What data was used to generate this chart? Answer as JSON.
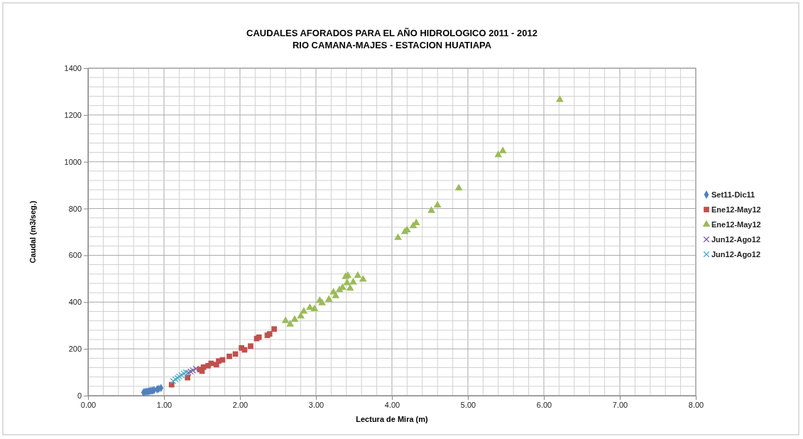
{
  "chart_data": {
    "type": "scatter",
    "title": "CAUDALES AFORADOS PARA EL AÑO HIDROLOGICO 2011 - 2012",
    "subtitle": "RIO CAMANA-MAJES - ESTACION HUATIAPA",
    "xlabel": "Lectura de Mira (m)",
    "ylabel": "Caudal (m3/seg.)",
    "xlim": [
      0,
      8
    ],
    "ylim": [
      0,
      1400
    ],
    "xticks": [
      {
        "value": 0,
        "label": "0.00"
      },
      {
        "value": 0.2,
        "label": null
      },
      {
        "value": 0.4,
        "label": null
      },
      {
        "value": 0.6,
        "label": null
      },
      {
        "value": 0.8,
        "label": null
      },
      {
        "value": 1,
        "label": "1.00"
      },
      {
        "value": 1.2,
        "label": null
      },
      {
        "value": 1.4,
        "label": null
      },
      {
        "value": 1.6,
        "label": null
      },
      {
        "value": 1.8,
        "label": null
      },
      {
        "value": 2,
        "label": "2.00"
      },
      {
        "value": 2.2,
        "label": null
      },
      {
        "value": 2.4,
        "label": null
      },
      {
        "value": 2.6,
        "label": null
      },
      {
        "value": 2.8,
        "label": null
      },
      {
        "value": 3,
        "label": "3.00"
      },
      {
        "value": 3.2,
        "label": null
      },
      {
        "value": 3.4,
        "label": null
      },
      {
        "value": 3.6,
        "label": null
      },
      {
        "value": 3.8,
        "label": null
      },
      {
        "value": 4,
        "label": "4.00"
      },
      {
        "value": 4.2,
        "label": null
      },
      {
        "value": 4.4,
        "label": null
      },
      {
        "value": 4.6,
        "label": null
      },
      {
        "value": 4.8,
        "label": null
      },
      {
        "value": 5,
        "label": "5.00"
      },
      {
        "value": 5.2,
        "label": null
      },
      {
        "value": 5.4,
        "label": null
      },
      {
        "value": 5.6,
        "label": null
      },
      {
        "value": 5.8,
        "label": null
      },
      {
        "value": 6,
        "label": "6.00"
      },
      {
        "value": 6.2,
        "label": null
      },
      {
        "value": 6.4,
        "label": null
      },
      {
        "value": 6.6,
        "label": null
      },
      {
        "value": 6.8,
        "label": null
      },
      {
        "value": 7,
        "label": "7.00"
      },
      {
        "value": 7.2,
        "label": null
      },
      {
        "value": 7.4,
        "label": null
      },
      {
        "value": 7.6,
        "label": null
      },
      {
        "value": 7.8,
        "label": null
      },
      {
        "value": 8,
        "label": "8.00"
      }
    ],
    "yticks": [
      0,
      {
        "value": 40,
        "label": null
      },
      {
        "value": 80,
        "label": null
      },
      {
        "value": 120,
        "label": null
      },
      {
        "value": 160,
        "label": null
      },
      200,
      {
        "value": 240,
        "label": null
      },
      {
        "value": 280,
        "label": null
      },
      {
        "value": 320,
        "label": null
      },
      {
        "value": 360,
        "label": null
      },
      400,
      {
        "value": 440,
        "label": null
      },
      {
        "value": 480,
        "label": null
      },
      {
        "value": 520,
        "label": null
      },
      {
        "value": 560,
        "label": null
      },
      600,
      {
        "value": 640,
        "label": null
      },
      {
        "value": 680,
        "label": null
      },
      {
        "value": 720,
        "label": null
      },
      {
        "value": 760,
        "label": null
      },
      800,
      {
        "value": 840,
        "label": null
      },
      {
        "value": 880,
        "label": null
      },
      {
        "value": 920,
        "label": null
      },
      {
        "value": 960,
        "label": null
      },
      1000,
      {
        "value": 1040,
        "label": null
      },
      {
        "value": 1080,
        "label": null
      },
      {
        "value": 1120,
        "label": null
      },
      {
        "value": 1160,
        "label": null
      },
      1200,
      {
        "value": 1240,
        "label": null
      },
      {
        "value": 1280,
        "label": null
      },
      {
        "value": 1320,
        "label": null
      },
      {
        "value": 1360,
        "label": null
      },
      1400
    ],
    "grid": true,
    "legend": "right",
    "series": [
      {
        "name": "Set11-Dic11",
        "color": "#4f81bd",
        "marker": "diamond",
        "x": [
          0.73,
          0.75,
          0.77,
          0.79,
          0.81,
          0.83,
          0.85,
          0.87,
          0.91,
          0.93,
          0.96
        ],
        "values": [
          14,
          16,
          17,
          18,
          20,
          21,
          22,
          24,
          27,
          29,
          33
        ]
      },
      {
        "name": "Ene12-May12",
        "color": "#c0504d",
        "marker": "square",
        "x": [
          1.1,
          1.31,
          1.47,
          1.5,
          1.52,
          1.58,
          1.62,
          1.69,
          1.72,
          1.77,
          1.86,
          1.94,
          2.02,
          2.06,
          2.14,
          2.22,
          2.25,
          2.36,
          2.39,
          2.45
        ],
        "values": [
          47,
          77,
          112,
          105,
          122,
          128,
          138,
          133,
          148,
          153,
          168,
          178,
          204,
          196,
          212,
          244,
          250,
          258,
          264,
          285
        ]
      },
      {
        "name": "Ene12-May12",
        "color": "#9bbb59",
        "marker": "triangle",
        "x": [
          2.6,
          2.66,
          2.72,
          2.8,
          2.84,
          2.92,
          2.98,
          3.05,
          3.08,
          3.17,
          3.23,
          3.26,
          3.31,
          3.35,
          3.39,
          3.42,
          3.41,
          3.45,
          3.49,
          3.55,
          3.62,
          4.08,
          4.17,
          4.2,
          4.28,
          4.32,
          4.52,
          4.6,
          4.88,
          5.4,
          5.46,
          6.21
        ],
        "values": [
          320,
          305,
          325,
          340,
          360,
          376,
          371,
          406,
          396,
          411,
          442,
          426,
          452,
          462,
          508,
          513,
          482,
          459,
          485,
          513,
          497,
          675,
          700,
          708,
          725,
          738,
          791,
          814,
          887,
          1029,
          1046,
          1265
        ]
      },
      {
        "name": "Jun12-Ago12",
        "color": "#8064a2",
        "marker": "cross",
        "x": [
          1.32,
          1.35,
          1.38,
          1.42
        ],
        "values": [
          98,
          103,
          108,
          115
        ]
      },
      {
        "name": "Jun12-Ago12",
        "color": "#4bacc6",
        "marker": "cross",
        "x": [
          1.12,
          1.15,
          1.18,
          1.2,
          1.23,
          1.26,
          1.29
        ],
        "values": [
          62,
          70,
          75,
          82,
          88,
          95,
          100
        ]
      }
    ]
  }
}
